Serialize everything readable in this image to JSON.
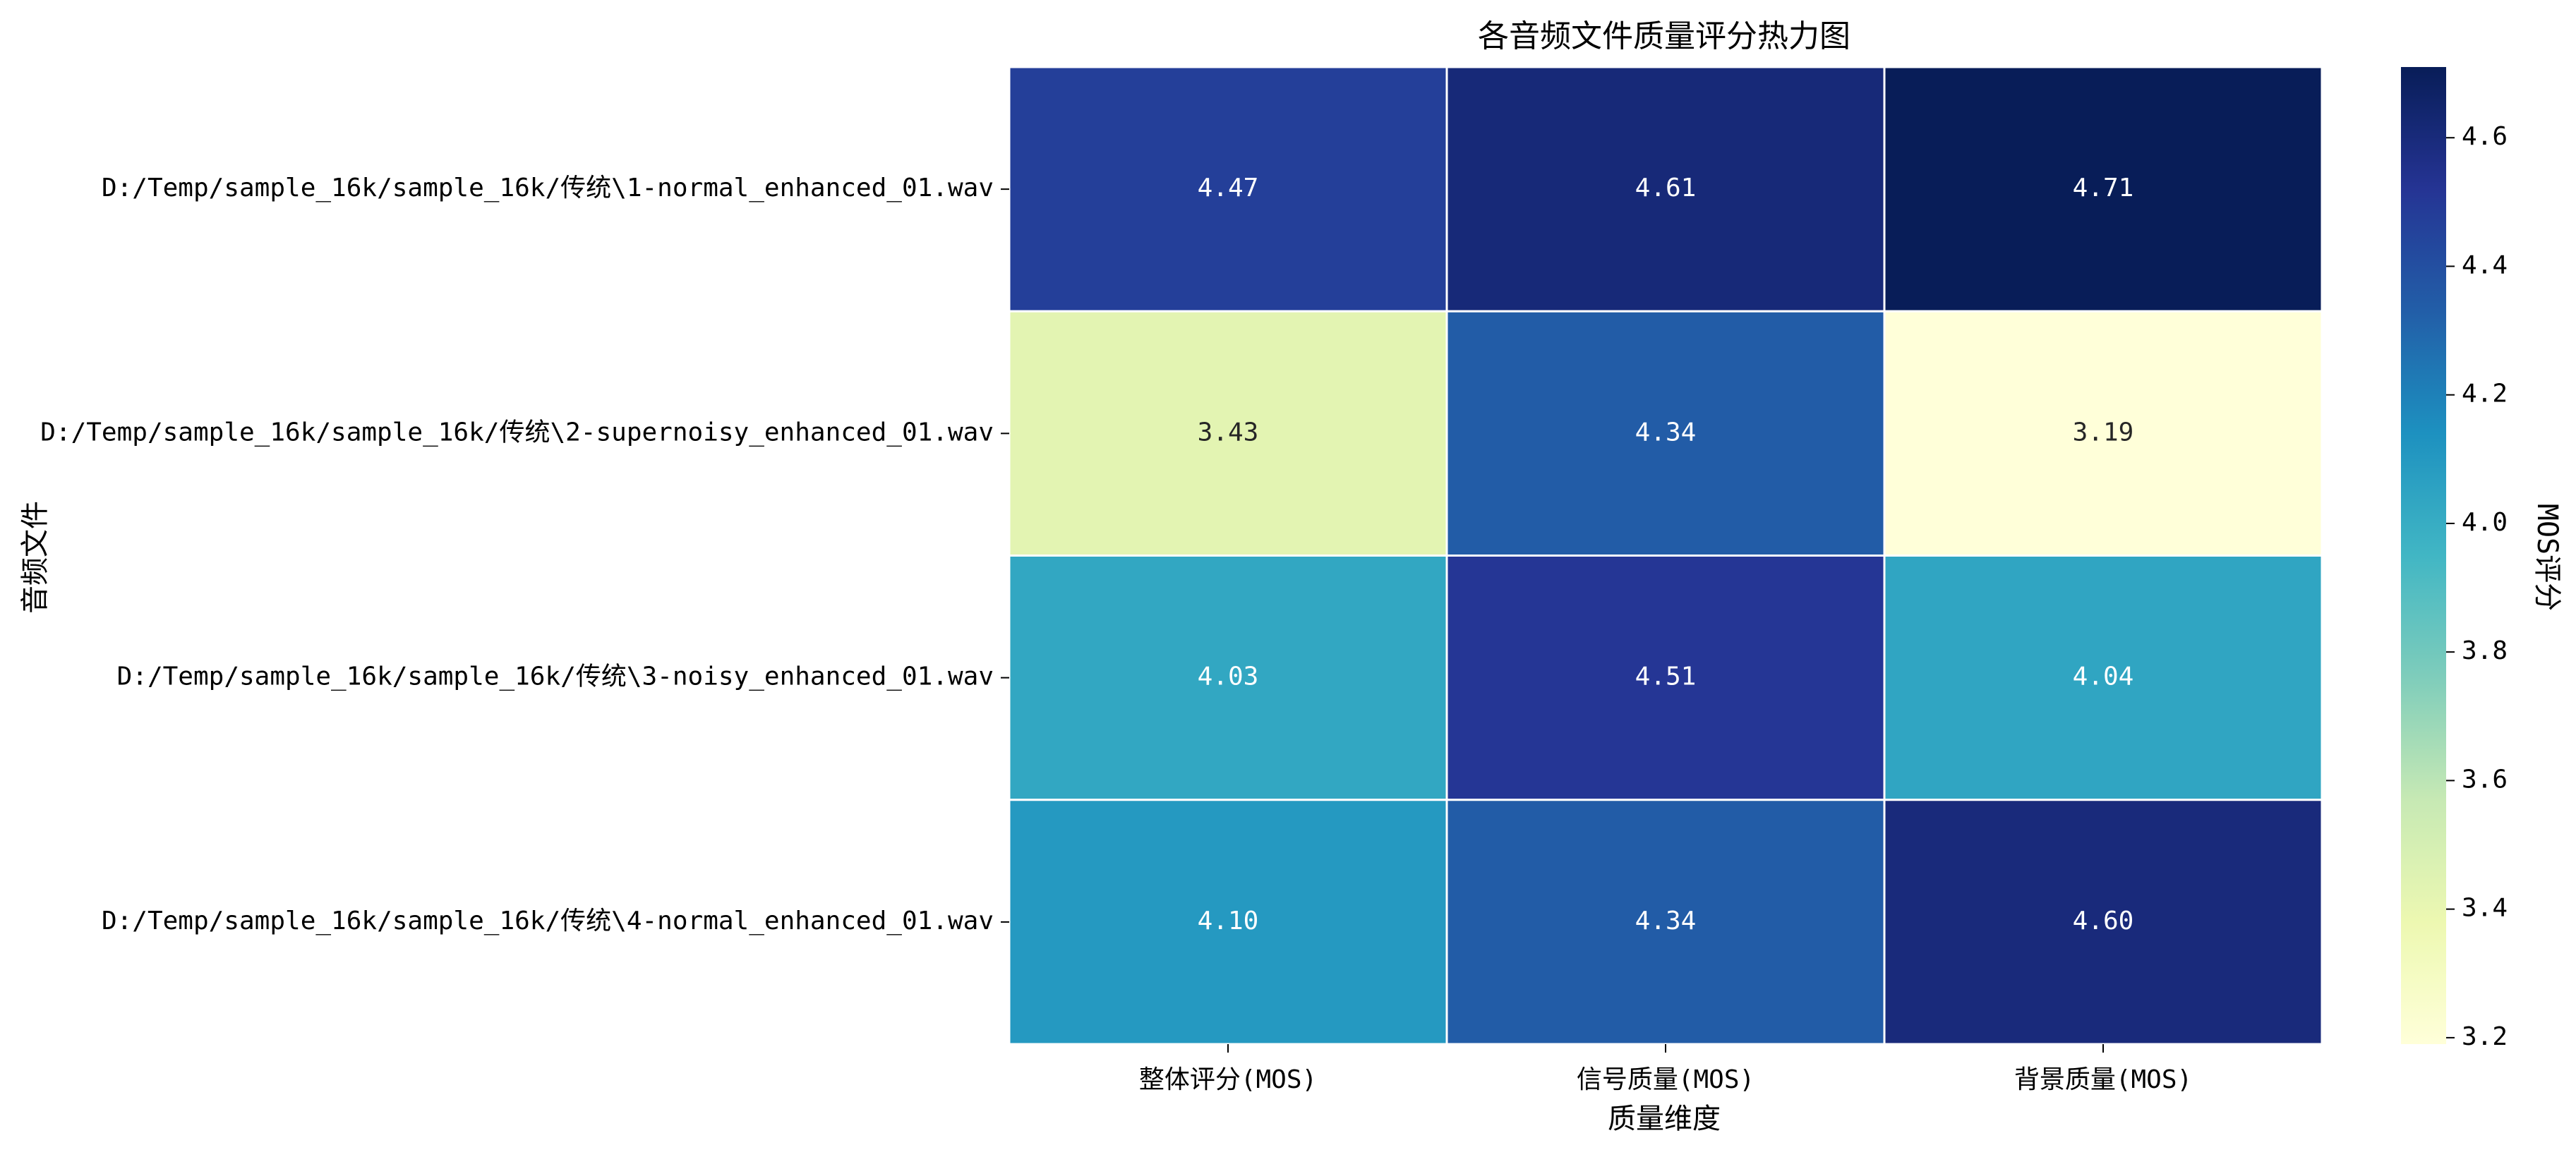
{
  "chart_data": {
    "type": "heatmap",
    "title": "各音频文件质量评分热力图",
    "xlabel": "质量维度",
    "ylabel": "音频文件",
    "colorbar_label": "MOS评分",
    "colormap": "YlGnBu",
    "columns": [
      "整体评分(MOS)",
      "信号质量(MOS)",
      "背景质量(MOS)"
    ],
    "rows": [
      "D:/Temp/sample_16k/sample_16k/传统\\1-normal_enhanced_01.wav",
      "D:/Temp/sample_16k/sample_16k/传统\\2-supernoisy_enhanced_01.wav",
      "D:/Temp/sample_16k/sample_16k/传统\\3-noisy_enhanced_01.wav",
      "D:/Temp/sample_16k/sample_16k/传统\\4-normal_enhanced_01.wav"
    ],
    "values": [
      [
        4.47,
        4.61,
        4.71
      ],
      [
        3.43,
        4.34,
        3.19
      ],
      [
        4.03,
        4.51,
        4.04
      ],
      [
        4.1,
        4.34,
        4.6
      ]
    ],
    "value_format": "0.00",
    "color_range": [
      3.19,
      4.71
    ],
    "colorbar_ticks": [
      "3.2",
      "3.4",
      "3.6",
      "3.8",
      "4.0",
      "4.2",
      "4.4",
      "4.6"
    ],
    "colorbar_tick_values": [
      3.2,
      3.4,
      3.6,
      3.8,
      4.0,
      4.2,
      4.4,
      4.6
    ],
    "grid": false,
    "cell_border_color": "#ffffff"
  }
}
